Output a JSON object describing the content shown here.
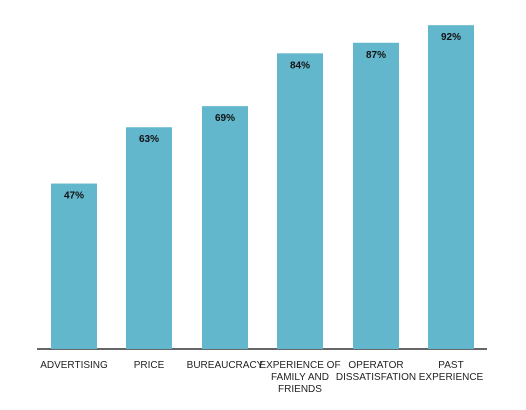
{
  "chart_data": {
    "type": "bar",
    "title": "",
    "xlabel": "",
    "ylabel": "",
    "ylim": [
      0,
      100
    ],
    "grid": false,
    "legend": "none",
    "categories": [
      "ADVERTISING",
      "PRICE",
      "BUREAUCRACY",
      "EXPERIENCE OF FAMILY AND FRIENDS",
      "OPERATOR DISSATISFATION",
      "PAST EXPERIENCE"
    ],
    "values": [
      47,
      63,
      69,
      84,
      87,
      92
    ],
    "value_labels": [
      "47%",
      "63%",
      "69%",
      "84%",
      "87%",
      "92%"
    ],
    "bar_color": "#63B7CD",
    "axis_color": "#333333"
  }
}
